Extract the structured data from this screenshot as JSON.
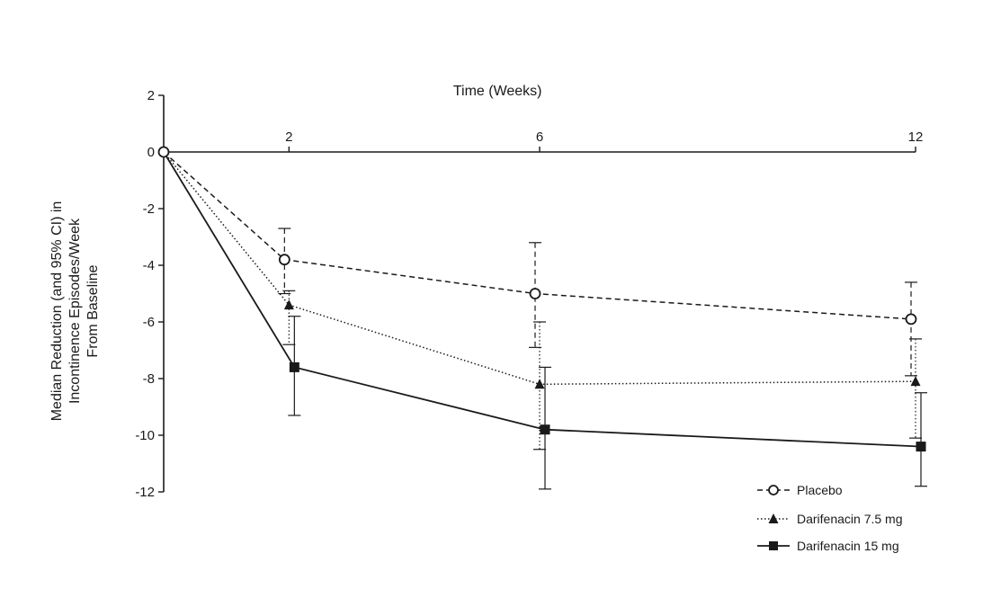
{
  "chart_data": {
    "type": "line",
    "xlabel": "Time (Weeks)",
    "ylabel_lines": [
      "Median Reduction (and 95% CI) in",
      "Incontinence Episodes/Week",
      "From Baseline"
    ],
    "x_ticks": [
      "2",
      "6",
      "12"
    ],
    "y_ticks": [
      "2",
      "0",
      "-2",
      "-4",
      "-6",
      "-8",
      "-10",
      "-12"
    ],
    "xlim": [
      0,
      12
    ],
    "ylim": [
      -12,
      2
    ],
    "x_axis_position": "top at y=0",
    "grid": false,
    "legend_position": "bottom-right",
    "x": [
      0,
      2,
      6,
      12
    ],
    "series": [
      {
        "name": "Placebo",
        "style": "dashed",
        "marker": "open-circle",
        "values": [
          0,
          -3.8,
          -5.0,
          -5.9
        ],
        "ci_low": [
          0,
          -5.0,
          -6.9,
          -7.9
        ],
        "ci_high": [
          0,
          -2.7,
          -3.2,
          -4.6
        ]
      },
      {
        "name": "Darifenacin 7.5 mg",
        "style": "dotted",
        "marker": "filled-triangle",
        "values": [
          0,
          -5.4,
          -8.2,
          -8.1
        ],
        "ci_low": [
          0,
          -6.8,
          -10.5,
          -10.1
        ],
        "ci_high": [
          0,
          -4.9,
          -6.0,
          -6.6
        ]
      },
      {
        "name": "Darifenacin 15 mg",
        "style": "solid",
        "marker": "filled-square",
        "values": [
          0,
          -7.6,
          -9.8,
          -10.4
        ],
        "ci_low": [
          0,
          -9.3,
          -11.9,
          -11.8
        ],
        "ci_high": [
          0,
          -5.8,
          -7.6,
          -8.5
        ]
      }
    ]
  }
}
